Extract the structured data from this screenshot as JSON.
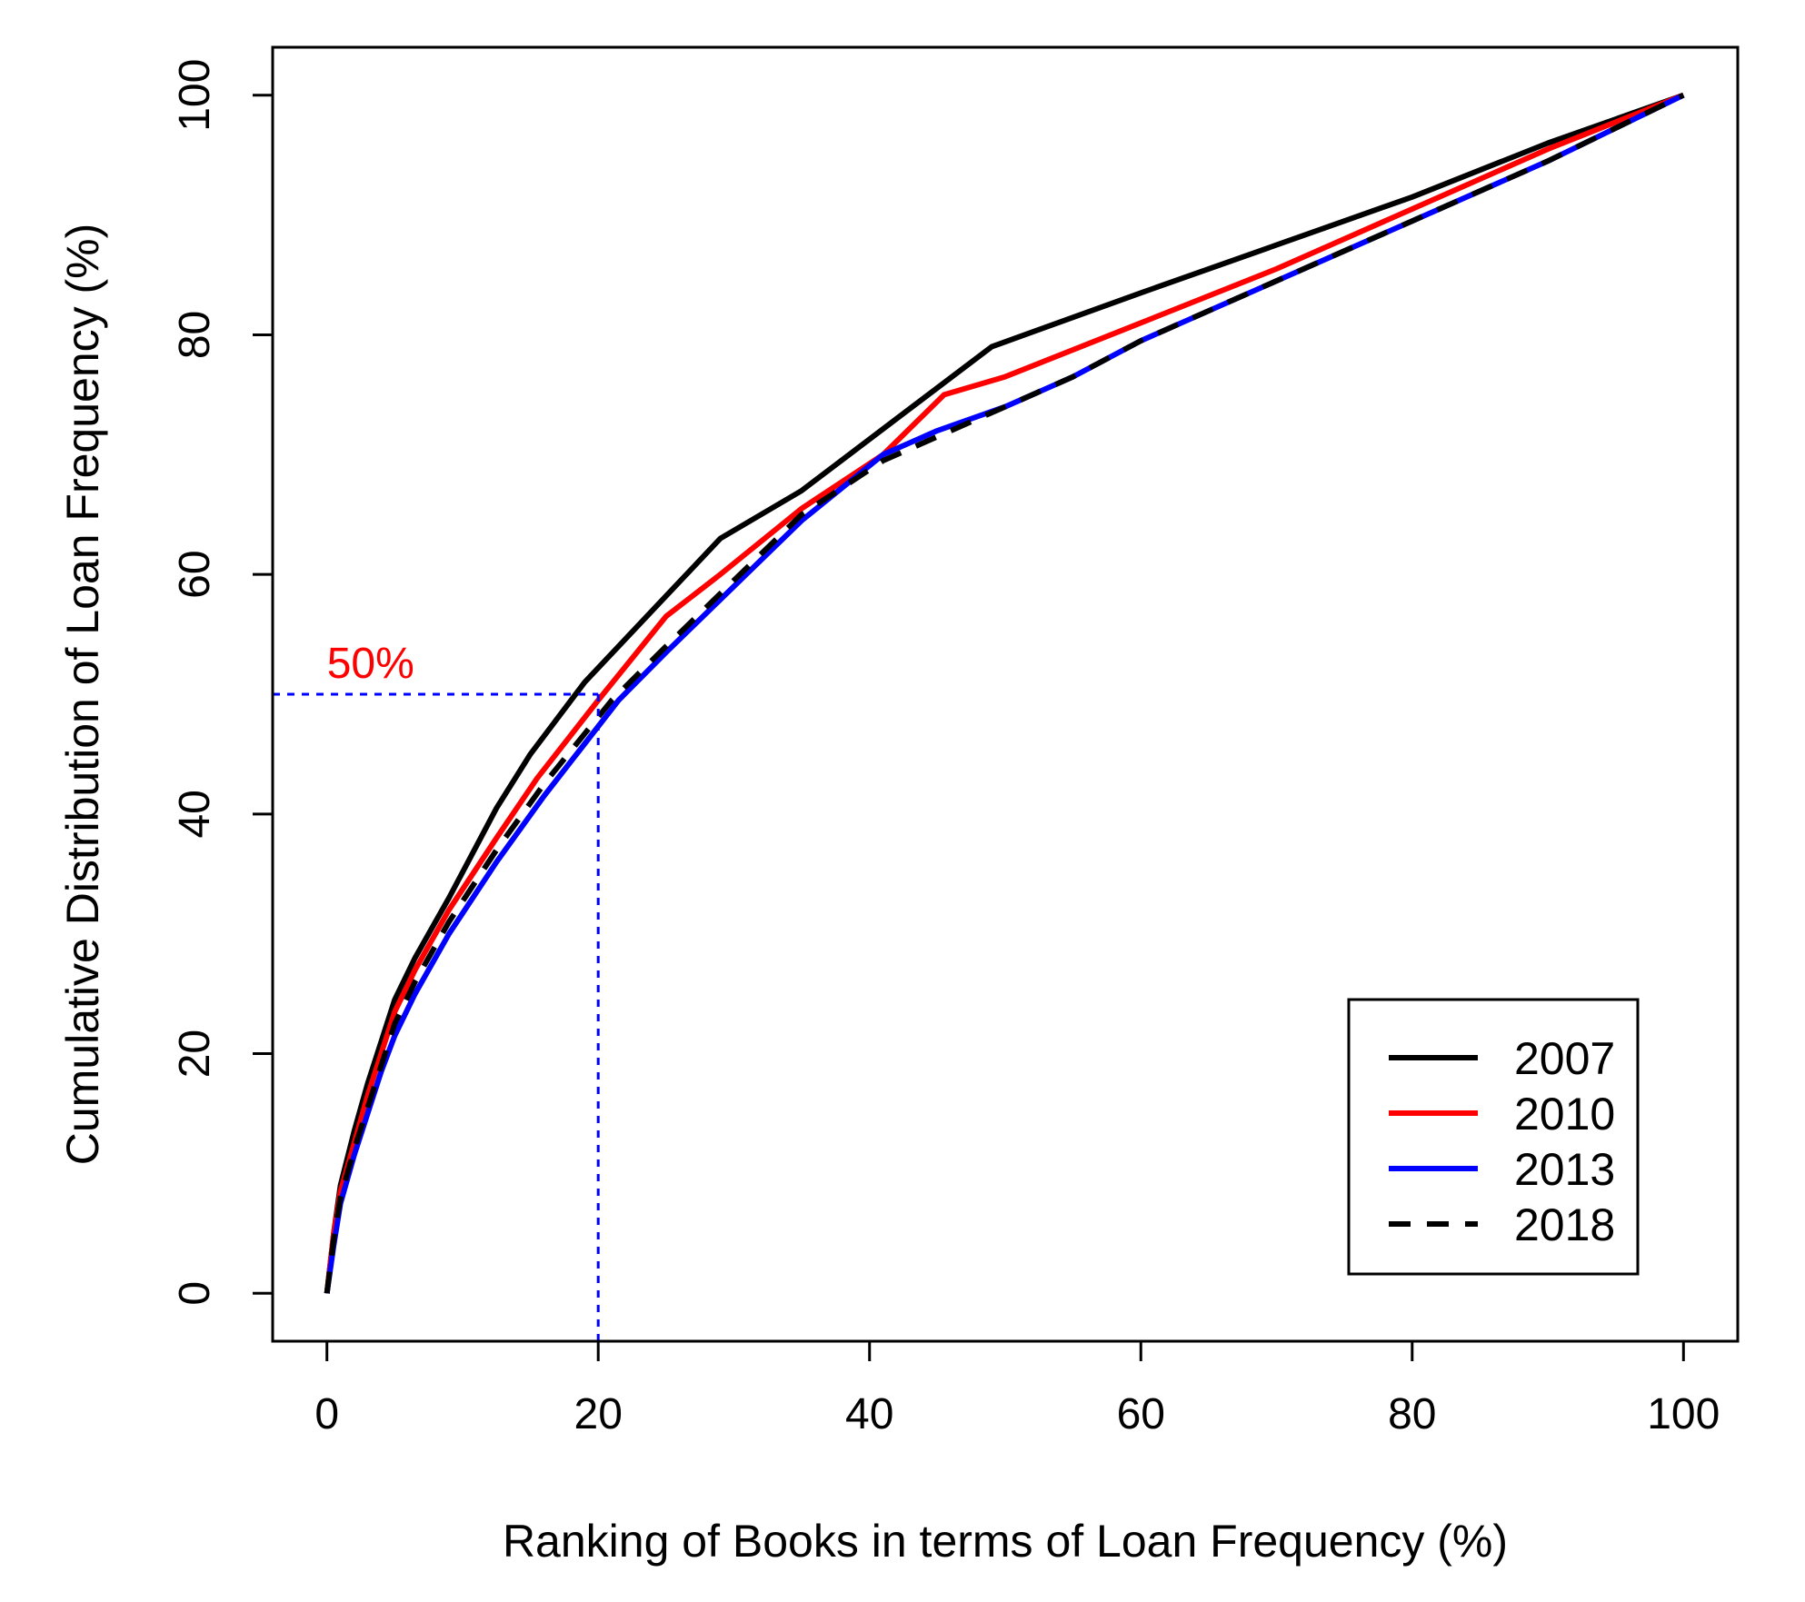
{
  "chart_data": {
    "type": "line",
    "title": "",
    "xlabel": "Ranking of Books in terms of Loan Frequency (%)",
    "ylabel": "Cumulative Distribution of Loan Frequency (%)",
    "xlim": [
      -4,
      104
    ],
    "ylim": [
      -4,
      104
    ],
    "xticks": [
      0,
      20,
      40,
      60,
      80,
      100
    ],
    "yticks": [
      0,
      20,
      40,
      60,
      80,
      100
    ],
    "xtick_labels": [
      "0",
      "20",
      "40",
      "60",
      "80",
      "100"
    ],
    "ytick_labels": [
      "0",
      "20",
      "40",
      "60",
      "80",
      "100"
    ],
    "grid": false,
    "legend_position": "bottom-right",
    "series": [
      {
        "name": "2007",
        "color": "#000000",
        "dash": "solid",
        "x": [
          0,
          0.5,
          1,
          2,
          3,
          4,
          5,
          6.5,
          9,
          12.5,
          15,
          19,
          24,
          29,
          35,
          42,
          49,
          60,
          70,
          80,
          90,
          100
        ],
        "y": [
          0,
          5,
          9,
          13.5,
          17.5,
          21,
          24.5,
          28,
          33,
          40.5,
          45,
          51,
          57,
          63,
          67,
          73,
          79,
          83.5,
          87.5,
          91.5,
          96,
          100
        ]
      },
      {
        "name": "2010",
        "color": "#ff0000",
        "dash": "solid",
        "x": [
          0,
          0.5,
          1,
          2,
          3,
          4,
          5,
          6.5,
          9,
          12.5,
          15.5,
          20,
          25,
          29,
          35,
          41,
          45.5,
          50,
          60,
          70,
          80,
          90,
          100
        ],
        "y": [
          0,
          5,
          8.5,
          12.5,
          16.5,
          20,
          23.5,
          27,
          32,
          38,
          43,
          49.5,
          56.5,
          60,
          65.5,
          70,
          75,
          76.5,
          81,
          85.5,
          90.5,
          95.5,
          100
        ]
      },
      {
        "name": "2013",
        "color": "#0000ff",
        "dash": "solid",
        "x": [
          0,
          0.5,
          1,
          2,
          3,
          4,
          5,
          6.5,
          9,
          12.5,
          16,
          21.5,
          25,
          30,
          35,
          41,
          45,
          50,
          55,
          60,
          70,
          80,
          90,
          100
        ],
        "y": [
          0,
          4,
          7.5,
          11.5,
          15,
          18.5,
          21.5,
          25,
          30,
          36,
          41.5,
          49.5,
          53.5,
          59,
          64.5,
          70,
          72,
          74,
          76.5,
          79.5,
          84.5,
          89.5,
          94.5,
          100
        ]
      },
      {
        "name": "2018",
        "color": "#000000",
        "dash": "dashed",
        "x": [
          0,
          0.5,
          1,
          2,
          3,
          4,
          5,
          6.5,
          9,
          12.5,
          16,
          21,
          25,
          30,
          35,
          41,
          45,
          50,
          55,
          60,
          70,
          80,
          90,
          100
        ],
        "y": [
          0,
          4.5,
          8,
          12,
          15.5,
          19,
          22.5,
          26,
          31,
          37,
          42.5,
          49.5,
          54,
          59.5,
          65,
          69.5,
          71.5,
          74,
          76.5,
          79.5,
          84.5,
          89.5,
          94.5,
          100
        ]
      }
    ],
    "annotations": [
      {
        "text": "50%",
        "color": "#ff0000",
        "x": 0,
        "y": 50,
        "guide_color": "#0000ff",
        "guide_x": 20,
        "guide_y": 50
      }
    ]
  }
}
